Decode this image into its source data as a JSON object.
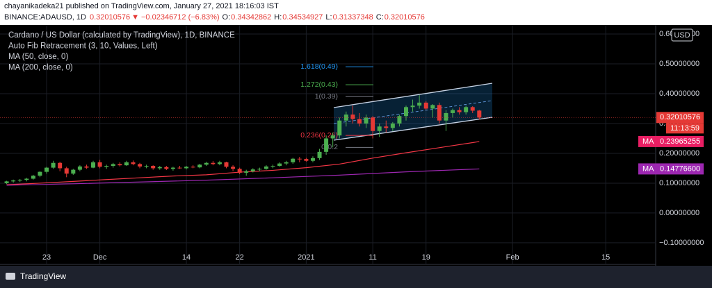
{
  "chart_data": {
    "type": "candlestick",
    "header": {
      "author_line": "chayanikadeka21 published on TradingView.com, January 27, 2021 18:16:03 IST",
      "symbol": "BINANCE:ADAUSD, 1D",
      "arrow": "▼",
      "change": "−0.02346712 (−6.83%)",
      "o": "O:",
      "h": "H:",
      "l": "L:",
      "c": "C:"
    },
    "legend": [
      "Cardano / US Dollar (calculated by TradingView), 1D, BINANCE",
      "Auto Fib Retracement (3, 10, Values, Left)",
      "MA (50, close, 0)",
      "MA (200, close, 0)"
    ],
    "currency": "USD",
    "countdown": "11:13:59",
    "footer": "TradingView",
    "up_color": "#4caf50",
    "down_color": "#e53935",
    "candles": [
      [
        0.1,
        0.108,
        0.097,
        0.106
      ],
      [
        0.106,
        0.112,
        0.102,
        0.109
      ],
      [
        0.109,
        0.114,
        0.104,
        0.111
      ],
      [
        0.111,
        0.118,
        0.106,
        0.115
      ],
      [
        0.115,
        0.128,
        0.112,
        0.125
      ],
      [
        0.125,
        0.14,
        0.12,
        0.138
      ],
      [
        0.138,
        0.155,
        0.132,
        0.152
      ],
      [
        0.152,
        0.175,
        0.148,
        0.168
      ],
      [
        0.168,
        0.172,
        0.14,
        0.15
      ],
      [
        0.15,
        0.155,
        0.12,
        0.132
      ],
      [
        0.132,
        0.148,
        0.128,
        0.145
      ],
      [
        0.145,
        0.16,
        0.14,
        0.156
      ],
      [
        0.156,
        0.162,
        0.148,
        0.152
      ],
      [
        0.152,
        0.175,
        0.15,
        0.17
      ],
      [
        0.17,
        0.178,
        0.15,
        0.155
      ],
      [
        0.155,
        0.162,
        0.148,
        0.158
      ],
      [
        0.158,
        0.168,
        0.152,
        0.164
      ],
      [
        0.164,
        0.17,
        0.156,
        0.16
      ],
      [
        0.16,
        0.175,
        0.158,
        0.17
      ],
      [
        0.17,
        0.176,
        0.16,
        0.164
      ],
      [
        0.164,
        0.168,
        0.15,
        0.156
      ],
      [
        0.156,
        0.162,
        0.15,
        0.158
      ],
      [
        0.158,
        0.16,
        0.145,
        0.15
      ],
      [
        0.15,
        0.158,
        0.145,
        0.154
      ],
      [
        0.154,
        0.158,
        0.144,
        0.148
      ],
      [
        0.148,
        0.155,
        0.142,
        0.152
      ],
      [
        0.152,
        0.158,
        0.148,
        0.15
      ],
      [
        0.15,
        0.158,
        0.146,
        0.155
      ],
      [
        0.155,
        0.16,
        0.15,
        0.153
      ],
      [
        0.153,
        0.165,
        0.15,
        0.162
      ],
      [
        0.162,
        0.172,
        0.158,
        0.168
      ],
      [
        0.168,
        0.174,
        0.16,
        0.164
      ],
      [
        0.164,
        0.175,
        0.16,
        0.17
      ],
      [
        0.17,
        0.172,
        0.15,
        0.155
      ],
      [
        0.155,
        0.16,
        0.14,
        0.148
      ],
      [
        0.148,
        0.152,
        0.13,
        0.135
      ],
      [
        0.135,
        0.145,
        0.125,
        0.14
      ],
      [
        0.14,
        0.15,
        0.136,
        0.146
      ],
      [
        0.146,
        0.152,
        0.14,
        0.148
      ],
      [
        0.148,
        0.16,
        0.145,
        0.156
      ],
      [
        0.156,
        0.162,
        0.15,
        0.158
      ],
      [
        0.158,
        0.17,
        0.155,
        0.166
      ],
      [
        0.166,
        0.175,
        0.16,
        0.17
      ],
      [
        0.17,
        0.185,
        0.165,
        0.182
      ],
      [
        0.182,
        0.188,
        0.17,
        0.181
      ],
      [
        0.181,
        0.185,
        0.172,
        0.175
      ],
      [
        0.175,
        0.19,
        0.17,
        0.184
      ],
      [
        0.184,
        0.215,
        0.178,
        0.205
      ],
      [
        0.205,
        0.26,
        0.195,
        0.25
      ],
      [
        0.25,
        0.27,
        0.22,
        0.26
      ],
      [
        0.26,
        0.32,
        0.25,
        0.31
      ],
      [
        0.31,
        0.34,
        0.29,
        0.33
      ],
      [
        0.33,
        0.36,
        0.3,
        0.315
      ],
      [
        0.315,
        0.335,
        0.29,
        0.3
      ],
      [
        0.3,
        0.33,
        0.285,
        0.32
      ],
      [
        0.32,
        0.325,
        0.25,
        0.275
      ],
      [
        0.275,
        0.3,
        0.255,
        0.29
      ],
      [
        0.29,
        0.31,
        0.27,
        0.285
      ],
      [
        0.285,
        0.305,
        0.275,
        0.3
      ],
      [
        0.3,
        0.33,
        0.29,
        0.325
      ],
      [
        0.325,
        0.36,
        0.31,
        0.355
      ],
      [
        0.355,
        0.38,
        0.34,
        0.36
      ],
      [
        0.36,
        0.395,
        0.35,
        0.37
      ],
      [
        0.37,
        0.375,
        0.345,
        0.35
      ],
      [
        0.35,
        0.365,
        0.32,
        0.362
      ],
      [
        0.362,
        0.37,
        0.3,
        0.31
      ],
      [
        0.31,
        0.345,
        0.275,
        0.335
      ],
      [
        0.335,
        0.35,
        0.32,
        0.345
      ],
      [
        0.345,
        0.355,
        0.33,
        0.338
      ],
      [
        0.338,
        0.36,
        0.33,
        0.355
      ],
      [
        0.355,
        0.358,
        0.335,
        0.343
      ],
      [
        0.34342862,
        0.34534927,
        0.31337348,
        0.32010576
      ]
    ],
    "series": [
      {
        "tag": "MA",
        "color": "#f23645",
        "label_color": "#e91e63",
        "x": [
          0,
          5,
          10,
          15,
          20,
          25,
          30,
          35,
          40,
          45,
          50,
          55,
          60,
          65,
          70,
          71
        ],
        "values": [
          0.095,
          0.1,
          0.106,
          0.112,
          0.118,
          0.124,
          0.128,
          0.137,
          0.143,
          0.152,
          0.164,
          0.184,
          0.202,
          0.219,
          0.236,
          0.23965255
        ]
      },
      {
        "tag": "MA",
        "color": "#9c27b0",
        "label_color": "#9c27b0",
        "x": [
          0,
          10,
          20,
          30,
          40,
          50,
          60,
          70,
          71
        ],
        "values": [
          0.093,
          0.098,
          0.104,
          0.11,
          0.118,
          0.127,
          0.138,
          0.147,
          0.147766
        ],
        "last_label": "0.14776600"
      }
    ],
    "fib_levels": [
      {
        "label": "1.618(0.49)",
        "value": 0.49,
        "color": "#2196f3"
      },
      {
        "label": "1.272(0.43)",
        "value": 0.43,
        "color": "#4caf50"
      },
      {
        "label": "1(0.39)",
        "value": 0.39,
        "color": "#787b86"
      },
      {
        "label": "0.236(0.26)",
        "value": 0.26,
        "color": "#f23645"
      },
      {
        "label": "0(0.2",
        "value": 0.22,
        "color": "#787b86"
      }
    ],
    "xlim": [
      -1,
      97.5
    ],
    "xticks": [
      {
        "value": 6,
        "label": "23"
      },
      {
        "value": 14,
        "label": "Dec"
      },
      {
        "value": 27,
        "label": "14"
      },
      {
        "value": 35,
        "label": "22"
      },
      {
        "value": 45,
        "label": "2021"
      },
      {
        "value": 55,
        "label": "11"
      },
      {
        "value": 63,
        "label": "19"
      },
      {
        "value": 76,
        "label": "Feb"
      },
      {
        "value": 90,
        "label": "15"
      }
    ],
    "ylim": [
      -0.17,
      0.621
    ],
    "yticks": [
      {
        "value": -0.1,
        "label": "−0.10000000"
      },
      {
        "value": 0,
        "label": "0.00000000"
      },
      {
        "value": 0.1,
        "label": "0.10000000"
      },
      {
        "value": 0.2,
        "label": "0.20000000"
      },
      {
        "value": 0.3,
        "label": "0.30000000"
      },
      {
        "value": 0.4,
        "label": "0.40000000"
      },
      {
        "value": 0.5,
        "label": "0.50000000"
      },
      {
        "value": 0.6,
        "label": "0.60000000"
      }
    ],
    "grid": true
  }
}
